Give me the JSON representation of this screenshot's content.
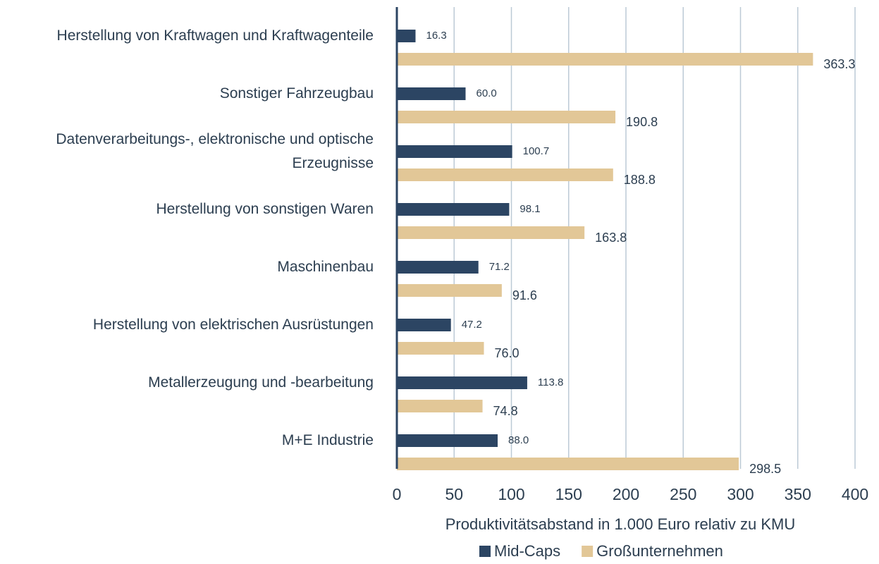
{
  "chart_data": {
    "type": "bar",
    "orientation": "horizontal",
    "categories": [
      "Herstellung von Kraftwagen und Kraftwagenteile",
      "Sonstiger Fahrzeugbau",
      "Datenverarbeitungs-, elektronische und optische Erzeugnisse",
      "Herstellung von sonstigen Waren",
      "Maschinenbau",
      "Herstellung von elektrischen Ausrüstungen",
      "Metallerzeugung und -bearbeitung",
      "M+E Industrie"
    ],
    "series": [
      {
        "name": "Mid-Caps",
        "color": "#2c4563",
        "values": [
          16.3,
          60,
          100.7,
          98.1,
          71.2,
          47.2,
          113.8,
          88
        ],
        "value_labels": [
          "16.3",
          "60.0",
          "100.7",
          "98.1",
          "71.2",
          "47.2",
          "113.8",
          "88.0"
        ]
      },
      {
        "name": "Großunternehmen",
        "color": "#e2c797",
        "values": [
          363.3,
          190.8,
          188.8,
          163.8,
          91.6,
          76,
          74.8,
          298.5
        ],
        "value_labels": [
          "363.3",
          "190.8",
          "188.8",
          "163.8",
          "91.6",
          "76.0",
          "74.8",
          "298.5"
        ]
      }
    ],
    "xlabel": "Produktivitätsabstand in 1.000 Euro relativ zu KMU",
    "xlim": [
      0,
      400
    ],
    "xticks": [
      0,
      50,
      100,
      150,
      200,
      250,
      300,
      350,
      400
    ],
    "grid": true,
    "legend": "bottom"
  }
}
